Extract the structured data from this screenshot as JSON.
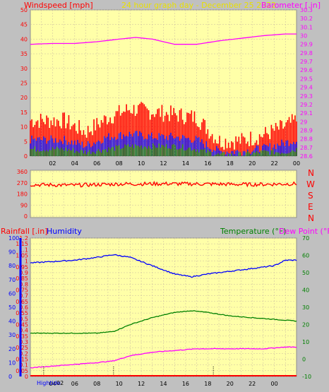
{
  "colors": {
    "background": "#c0c0c0",
    "plot_bg": "#ffffa8",
    "grid": "#c8b8a0",
    "wind": "#ff0000",
    "gust": "#ff0000",
    "wind_avg": "#0000ff",
    "wind_low": "#008000",
    "barometer": "#ff00ff",
    "direction": "#ff0000",
    "rain": "#ff0000",
    "humidity": "#0000ff",
    "temperature": "#008000",
    "dew_point": "#ff00ff",
    "axis_left": "#0000ff"
  },
  "header": {
    "wind_label": "Windspeed [mph]",
    "title": "24 hour graph day - December 25 2022",
    "baro_label": "Barometer [.in]"
  },
  "direction_labels": [
    "N",
    "W",
    "S",
    "E",
    "N"
  ],
  "bottom_header": {
    "rain_label": "Rainfall [.in]",
    "humidity_label": "Humidity",
    "temp_label": "Temperature (°F)",
    "dew_label": "Dew Point (°F)"
  },
  "footer": {
    "hightide_label": "Hightide",
    "first_hour": "02"
  },
  "chart_data": [
    {
      "type": "line",
      "name": "wind_and_barometer",
      "x_ticks": [
        "02",
        "04",
        "06",
        "08",
        "10",
        "12",
        "14",
        "16",
        "18",
        "20",
        "22",
        "00"
      ],
      "y_left_ticks": [
        "0",
        "5",
        "10",
        "15",
        "20",
        "25",
        "30",
        "35",
        "40",
        "45",
        "50"
      ],
      "ylim_left": [
        0,
        50
      ],
      "y_right_ticks": [
        "28.6",
        "28.7",
        "28.8",
        "28.9",
        "29",
        "29.1",
        "29.2",
        "29.3",
        "29.4",
        "29.5",
        "29.6",
        "29.7",
        "29.8",
        "29.9",
        "30",
        "30.1",
        "30.2",
        "30.3"
      ],
      "ylim_right": [
        28.6,
        30.3
      ],
      "barometer_hours": [
        0,
        2,
        4,
        6,
        8,
        9.5,
        11,
        13,
        15,
        17,
        19,
        21,
        23,
        24
      ],
      "barometer_values": [
        29.9,
        29.91,
        29.91,
        29.93,
        29.96,
        29.98,
        29.96,
        29.9,
        29.9,
        29.94,
        29.97,
        30.0,
        30.02,
        30.02
      ],
      "gust_hours": [
        0,
        3,
        5,
        7,
        9,
        11,
        13,
        15,
        16,
        17,
        19,
        21,
        23,
        24
      ],
      "gust_values": [
        11,
        11,
        7,
        12,
        15,
        14,
        13,
        12,
        8,
        4,
        4,
        6,
        9,
        11
      ],
      "avg_hours": [
        0,
        3,
        5,
        7,
        9,
        11,
        13,
        15,
        16,
        17,
        19,
        21,
        23,
        24
      ],
      "avg_values": [
        5,
        5,
        3,
        6,
        7,
        6,
        6,
        5,
        3,
        1,
        1,
        2,
        4,
        5
      ],
      "low_hours": [
        0,
        3,
        5,
        7,
        9,
        11,
        13,
        15,
        16,
        17,
        19,
        21,
        23,
        24
      ],
      "low_values": [
        2,
        2,
        1,
        2,
        3,
        3,
        3,
        2,
        1,
        0,
        0,
        1,
        1,
        2
      ]
    },
    {
      "type": "line",
      "name": "wind_direction",
      "y_ticks": [
        "360",
        "270",
        "180",
        "90",
        "0"
      ],
      "ylim": [
        0,
        360
      ],
      "hours": [
        0,
        4,
        8,
        12,
        16,
        20,
        24
      ],
      "values": [
        255,
        250,
        260,
        262,
        260,
        256,
        262
      ]
    },
    {
      "type": "line",
      "name": "rain_humidity_temperature",
      "humidity_ticks": [
        "0",
        "10",
        "20",
        "30",
        "40",
        "50",
        "60",
        "70",
        "80",
        "90",
        "100"
      ],
      "rain_ticks": [
        "0",
        "0.05",
        "0.1",
        "0.15",
        "0.2",
        "0.25",
        "0.3",
        "0.35",
        "0.4",
        "0.45",
        "0.5",
        "0.55",
        "0.6",
        "0.65",
        "0.7",
        "0.75",
        "0.8",
        "0.85",
        "0.9",
        "0.95",
        "1",
        "1.05",
        "1.1",
        "1.15",
        "1.2"
      ],
      "temp_ticks": [
        "-10",
        "0",
        "10",
        "20",
        "30",
        "40",
        "50",
        "60",
        "70"
      ],
      "ylim_humidity": [
        0,
        100
      ],
      "ylim_temp": [
        -10,
        70
      ],
      "humidity_hours": [
        0,
        2,
        4,
        6,
        7.5,
        9,
        11,
        13,
        14.5,
        16,
        18,
        20,
        22,
        23,
        24
      ],
      "humidity_values": [
        82,
        83,
        84,
        86,
        88,
        86,
        80,
        74,
        72,
        74,
        76,
        78,
        80,
        84,
        84
      ],
      "temp_hours": [
        0,
        2,
        4,
        6,
        7.5,
        9,
        11,
        13,
        14.5,
        16,
        18,
        20,
        22,
        24
      ],
      "temp_values": [
        15,
        15,
        15,
        15,
        16,
        20,
        24,
        27,
        28,
        27,
        25,
        24,
        23,
        22
      ],
      "dew_hours": [
        0,
        2,
        4,
        6,
        7.5,
        9,
        11,
        13,
        15,
        17,
        19,
        21,
        23,
        24
      ],
      "dew_values": [
        -5,
        -4,
        -3,
        -2,
        -1,
        2,
        4,
        5,
        6,
        6,
        6,
        6,
        7,
        7
      ],
      "tide_marks_hours": [
        1.2,
        7.5,
        16.5
      ]
    }
  ]
}
